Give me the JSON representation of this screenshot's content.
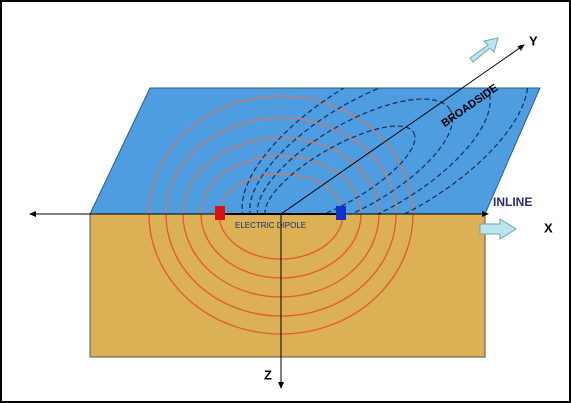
{
  "labels": {
    "y_axis": "Y",
    "broadside": "BROADSIDE",
    "inline": "INLINE",
    "x_axis": "X",
    "dipole": "ELECTRIC DIPOLE",
    "z_axis": "Z"
  }
}
